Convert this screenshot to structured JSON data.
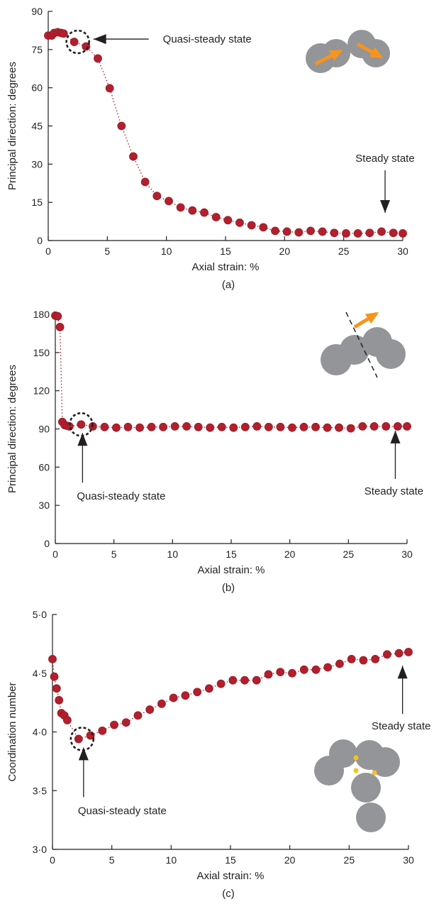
{
  "chart_data": [
    {
      "type": "scatter",
      "panel_label": "(a)",
      "xlabel": "Axial strain: %",
      "ylabel": "Principal direction: degrees",
      "xlim": [
        0,
        30
      ],
      "ylim": [
        0,
        90
      ],
      "xticks": [
        0,
        5,
        10,
        15,
        20,
        25,
        30
      ],
      "yticks": [
        0,
        15,
        30,
        45,
        60,
        75,
        90
      ],
      "ytick_labels": [
        "0",
        "15",
        "30",
        "45",
        "60",
        "75",
        "90"
      ],
      "x": [
        0.0,
        0.3,
        0.5,
        0.8,
        1.1,
        1.3,
        2.2,
        3.2,
        4.2,
        5.2,
        6.2,
        7.2,
        8.2,
        9.2,
        10.2,
        11.2,
        12.2,
        13.2,
        14.2,
        15.2,
        16.2,
        17.2,
        18.2,
        19.2,
        20.2,
        21.2,
        22.2,
        23.2,
        24.2,
        25.2,
        26.2,
        27.2,
        28.2,
        29.2,
        30.0
      ],
      "y": [
        80.5,
        80.5,
        81.5,
        81.8,
        81.5,
        81.3,
        78.0,
        76.2,
        71.5,
        59.8,
        45.0,
        33.0,
        23.0,
        17.5,
        15.5,
        13.0,
        11.8,
        11.0,
        9.2,
        8.0,
        7.0,
        6.0,
        5.2,
        3.8,
        3.5,
        3.2,
        3.8,
        3.5,
        3.0,
        2.8,
        2.8,
        3.0,
        3.5,
        3.0,
        2.8
      ],
      "annotations": [
        {
          "text": "Quasi-steady state",
          "x": 2.5,
          "y": 78
        },
        {
          "text": "Steady state",
          "x": 28.5,
          "y": 11
        }
      ]
    },
    {
      "type": "scatter",
      "panel_label": "(b)",
      "xlabel": "Axial strain: %",
      "ylabel": "Principal direction: degrees",
      "xlim": [
        0,
        30
      ],
      "ylim": [
        0,
        180
      ],
      "xticks": [
        0,
        5,
        10,
        15,
        20,
        25,
        30
      ],
      "yticks": [
        0,
        30,
        60,
        90,
        120,
        150,
        180
      ],
      "ytick_labels": [
        "0",
        "30",
        "60",
        "90",
        "120",
        "150",
        "180"
      ],
      "x": [
        0.0,
        0.2,
        0.4,
        0.6,
        0.8,
        1.0,
        1.2,
        2.2,
        3.2,
        4.2,
        5.2,
        6.2,
        7.2,
        8.2,
        9.2,
        10.2,
        11.2,
        12.2,
        13.2,
        14.2,
        15.2,
        16.2,
        17.2,
        18.2,
        19.2,
        20.2,
        21.2,
        22.2,
        23.2,
        24.2,
        25.2,
        26.2,
        27.2,
        28.2,
        29.2,
        30.0
      ],
      "y": [
        179.0,
        178.5,
        170.0,
        95.5,
        93.0,
        92.5,
        92.0,
        93.5,
        92.0,
        91.5,
        91.0,
        91.5,
        91.0,
        91.5,
        91.5,
        92.0,
        92.0,
        91.5,
        91.0,
        91.5,
        91.0,
        91.5,
        92.0,
        91.5,
        91.5,
        91.0,
        91.5,
        91.5,
        91.0,
        91.0,
        90.5,
        92.0,
        92.0,
        92.0,
        92.0,
        92.0
      ],
      "annotations": [
        {
          "text": "Quasi-steady state",
          "x": 2.2,
          "y": 93.5
        },
        {
          "text": "Steady state",
          "x": 29.0,
          "y": 92
        }
      ]
    },
    {
      "type": "scatter",
      "panel_label": "(c)",
      "xlabel": "Axial strain: %",
      "ylabel": "Coordination number",
      "xlim": [
        0,
        30
      ],
      "ylim": [
        3.0,
        5.0
      ],
      "xticks": [
        0,
        5,
        10,
        15,
        20,
        25,
        30
      ],
      "yticks": [
        3.0,
        3.5,
        4.0,
        4.5,
        5.0
      ],
      "ytick_labels": [
        "3·0",
        "3·5",
        "4·0",
        "4·5",
        "5·0"
      ],
      "x": [
        0.0,
        0.15,
        0.35,
        0.55,
        0.75,
        1.0,
        1.25,
        2.2,
        3.2,
        4.2,
        5.2,
        6.2,
        7.2,
        8.2,
        9.2,
        10.2,
        11.2,
        12.2,
        13.2,
        14.2,
        15.2,
        16.2,
        17.2,
        18.2,
        19.2,
        20.2,
        21.2,
        22.2,
        23.2,
        24.2,
        25.2,
        26.2,
        27.2,
        28.2,
        29.2,
        30.0
      ],
      "y": [
        4.62,
        4.47,
        4.37,
        4.27,
        4.16,
        4.14,
        4.1,
        3.94,
        3.97,
        4.01,
        4.06,
        4.08,
        4.14,
        4.19,
        4.24,
        4.29,
        4.31,
        4.34,
        4.37,
        4.41,
        4.44,
        4.44,
        4.44,
        4.49,
        4.51,
        4.5,
        4.53,
        4.53,
        4.55,
        4.58,
        4.62,
        4.61,
        4.62,
        4.66,
        4.67,
        4.68
      ],
      "annotations": [
        {
          "text": "Quasi-steady state",
          "x": 2.5,
          "y": 3.94
        },
        {
          "text": "Steady state",
          "x": 29.5,
          "y": 4.6
        }
      ]
    }
  ],
  "colors": {
    "marker": "#b21f2d",
    "series_line": "#b5121b",
    "particle": "#939598",
    "vector_arrow": "#f7941d",
    "contact_point": "#f9c21b",
    "axis": "#231f20"
  }
}
